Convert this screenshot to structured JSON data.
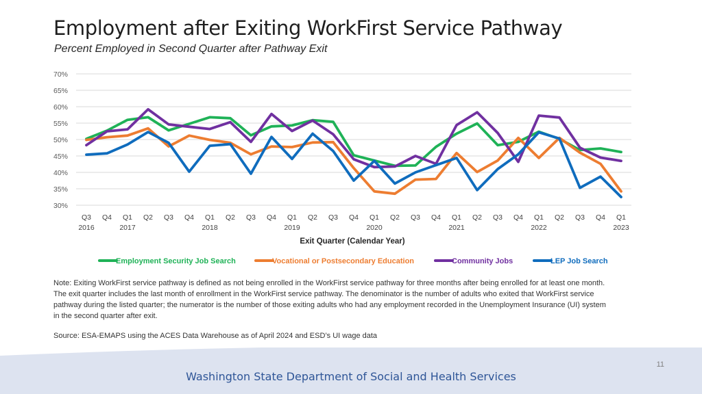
{
  "slide": {
    "title": "Employment after Exiting WorkFirst Service Pathway",
    "subtitle": "Percent Employed in Second Quarter after Pathway Exit",
    "note": "Note: Exiting WorkFirst service pathway is defined as not being enrolled in the WorkFirst service pathway for three months after being enrolled for at least one month. The exit quarter includes the last month of enrollment in the WorkFirst service pathway. The denominator is the number of adults who exited that WorkFirst service pathway during the listed quarter; the numerator is the number of those exiting adults who had any employment recorded in the Unemployment Insurance (UI) system in the second quarter after exit.",
    "source": "Source: ESA-EMAPS using the ACES Data Warehouse as of April 2024 and ESD’s UI wage data",
    "page_number": "11",
    "organization": "Washington State Department of Social and Health Services"
  },
  "colors": {
    "footer_band": "#dde3f0",
    "organization_text": "#2e5597",
    "gridline": "#d9d9d9"
  },
  "chart_data": {
    "type": "line",
    "title": "Employment after Exiting WorkFirst Service Pathway",
    "subtitle": "Percent Employed in Second Quarter after Pathway Exit",
    "xlabel": "Exit Quarter (Calendar Year)",
    "ylabel": "",
    "ylim": [
      30,
      70
    ],
    "y_ticks": [
      30,
      35,
      40,
      45,
      50,
      55,
      60,
      65,
      70
    ],
    "y_tick_format": "percent",
    "grid": true,
    "legend_position": "bottom",
    "categories": [
      "Q3",
      "Q4",
      "Q1",
      "Q2",
      "Q3",
      "Q4",
      "Q1",
      "Q2",
      "Q3",
      "Q4",
      "Q1",
      "Q2",
      "Q3",
      "Q4",
      "Q1",
      "Q2",
      "Q3",
      "Q4",
      "Q1",
      "Q2",
      "Q3",
      "Q4",
      "Q1",
      "Q2",
      "Q3",
      "Q4",
      "Q1"
    ],
    "year_labels": [
      {
        "index": 0,
        "label": "2016"
      },
      {
        "index": 2,
        "label": "2017"
      },
      {
        "index": 6,
        "label": "2018"
      },
      {
        "index": 10,
        "label": "2019"
      },
      {
        "index": 14,
        "label": "2020"
      },
      {
        "index": 18,
        "label": "2021"
      },
      {
        "index": 22,
        "label": "2022"
      },
      {
        "index": 26,
        "label": "2023"
      }
    ],
    "series": [
      {
        "name": "Employment Security Job Search",
        "color": "#1fb257",
        "values": [
          50.2,
          52.7,
          56.0,
          56.8,
          52.8,
          54.8,
          56.8,
          56.5,
          51.3,
          54.0,
          54.3,
          55.9,
          55.4,
          45.2,
          43.6,
          42.0,
          42.1,
          47.8,
          51.8,
          54.9,
          48.3,
          49.3,
          52.4,
          50.2,
          46.8,
          47.3,
          46.2
        ]
      },
      {
        "name": "Vocational or Postsecondary Education",
        "color": "#ed7d31",
        "values": [
          49.9,
          50.7,
          51.2,
          53.4,
          47.9,
          51.2,
          49.9,
          49.0,
          45.5,
          47.9,
          47.7,
          49.1,
          49.2,
          41.3,
          34.2,
          33.5,
          37.8,
          38.0,
          45.9,
          40.1,
          43.6,
          50.5,
          44.4,
          50.5,
          46.0,
          42.6,
          34.2
        ]
      },
      {
        "name": "Community Jobs",
        "color": "#7030a0",
        "values": [
          48.3,
          52.5,
          53.1,
          59.2,
          54.6,
          53.9,
          53.2,
          55.3,
          49.3,
          57.8,
          52.6,
          55.8,
          51.6,
          44.0,
          41.6,
          41.8,
          45.0,
          42.6,
          54.4,
          58.3,
          52.0,
          43.2,
          57.3,
          56.7,
          47.5,
          44.5,
          43.5
        ]
      },
      {
        "name": "LEP Job Search",
        "color": "#0f6cbd",
        "values": [
          45.4,
          45.8,
          48.5,
          52.3,
          49.0,
          40.2,
          48.1,
          48.6,
          39.6,
          50.8,
          44.1,
          51.8,
          46.5,
          37.5,
          43.5,
          36.6,
          40.0,
          42.2,
          44.4,
          34.6,
          41.0,
          45.5,
          52.2,
          50.3,
          35.3,
          38.7,
          32.5
        ]
      }
    ]
  }
}
